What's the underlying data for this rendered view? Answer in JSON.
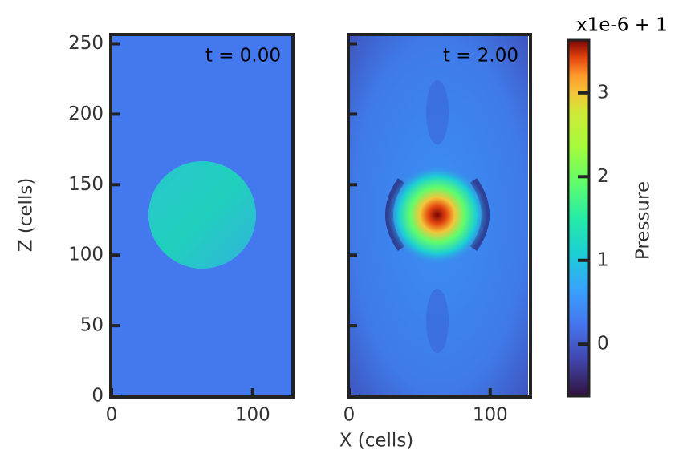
{
  "chart_data": {
    "type": "image",
    "panels": [
      {
        "annotation": "t = 0.00"
      },
      {
        "annotation": "t = 2.00"
      }
    ],
    "xlabel": "X (cells)",
    "ylabel": "Z (cells)",
    "xlim": [
      0,
      128
    ],
    "xticks": [
      0,
      100
    ],
    "ylim": [
      0,
      256
    ],
    "yticks": [
      0,
      50,
      100,
      150,
      200,
      250
    ],
    "colorbar": {
      "label": "Pressure",
      "offset_label": "x1e-6 + 1",
      "lim": [
        -0.62,
        3.63
      ],
      "ticks": [
        0,
        1,
        2,
        3
      ]
    }
  }
}
